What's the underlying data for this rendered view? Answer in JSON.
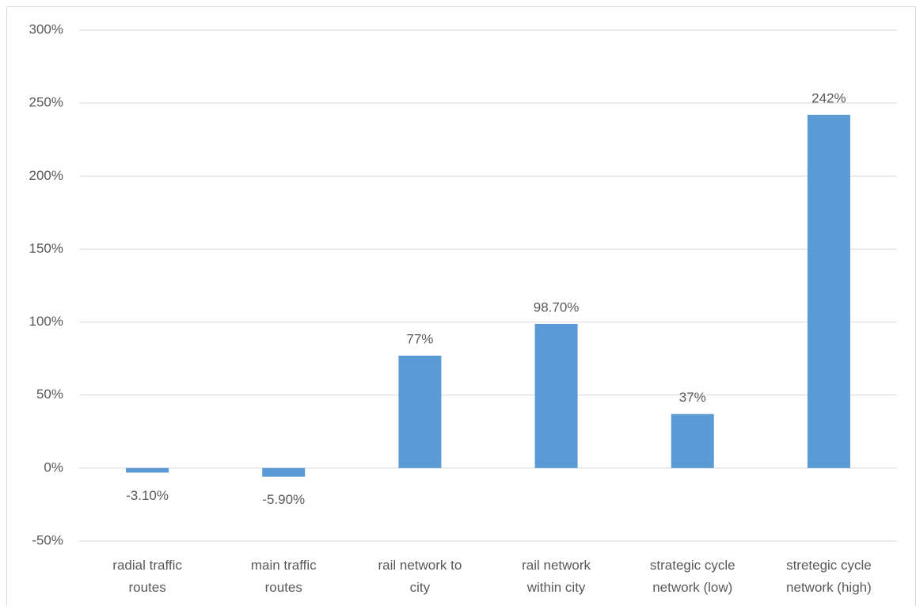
{
  "chart_data": {
    "type": "bar",
    "categories": [
      [
        "radial traffic",
        "routes"
      ],
      [
        "main traffic",
        "routes"
      ],
      [
        "rail network to",
        "city"
      ],
      [
        "rail network",
        "within city"
      ],
      [
        "strategic cycle",
        "network (low)"
      ],
      [
        "stretegic cycle",
        "network (high)"
      ]
    ],
    "values": [
      -3.1,
      -5.9,
      77,
      98.7,
      37,
      242
    ],
    "value_labels": [
      "-3.10%",
      "-5.90%",
      "77%",
      "98.70%",
      "37%",
      "242%"
    ],
    "color": "#5b9bd5",
    "ylim": [
      -50,
      300
    ],
    "yticks": [
      {
        "value": -50,
        "label": "-50%"
      },
      {
        "value": 0,
        "label": "0%"
      },
      {
        "value": 50,
        "label": "50%"
      },
      {
        "value": 100,
        "label": "100%"
      },
      {
        "value": 150,
        "label": "150%"
      },
      {
        "value": 200,
        "label": "200%"
      },
      {
        "value": 250,
        "label": "250%"
      },
      {
        "value": 300,
        "label": "300%"
      }
    ],
    "grid": true
  }
}
